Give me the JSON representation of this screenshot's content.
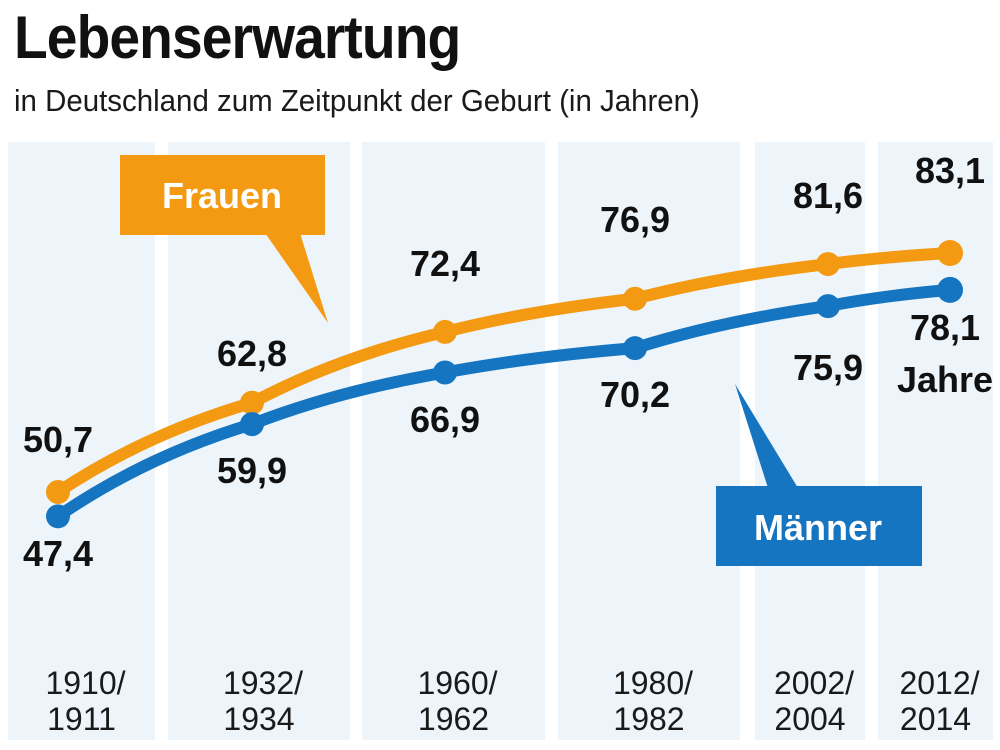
{
  "chart_data": {
    "type": "line",
    "title": "Lebenserwartung",
    "subtitle": "in Deutschland zum Zeitpunkt der Geburt (in Jahren)",
    "xlabel": "",
    "ylabel": "",
    "categories": [
      [
        "1910/",
        "1911"
      ],
      [
        "1932/",
        "1934"
      ],
      [
        "1960/",
        "1962"
      ],
      [
        "1980/",
        "1982"
      ],
      [
        "2002/",
        "2004"
      ],
      [
        "2012/",
        "2014"
      ]
    ],
    "series": [
      {
        "name": "Frauen",
        "color": "#f39a12",
        "values": [
          50.7,
          62.8,
          72.4,
          76.9,
          81.6,
          83.1
        ],
        "labels": [
          "50,7",
          "62,8",
          "72,4",
          "76,9",
          "81,6",
          "83,1"
        ]
      },
      {
        "name": "Männer",
        "color": "#1675c0",
        "values": [
          47.4,
          59.9,
          66.9,
          70.2,
          75.9,
          78.1
        ],
        "labels": [
          "47,4",
          "59,9",
          "66,9",
          "70,2",
          "75,9",
          "78,1"
        ]
      }
    ],
    "unit_label": "Jahre",
    "grid": false,
    "legend": "callouts"
  }
}
